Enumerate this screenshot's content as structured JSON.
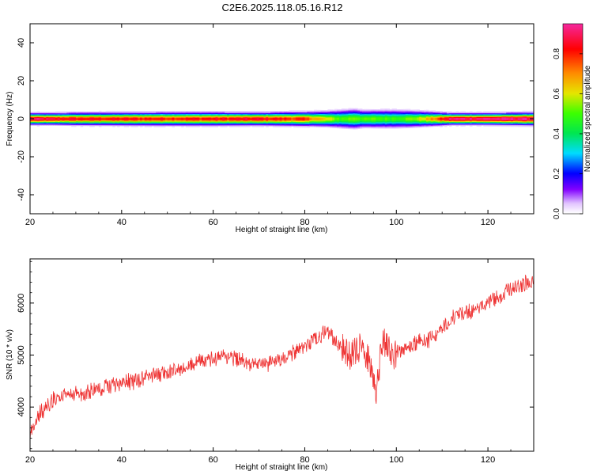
{
  "title": "C2E6.2025.118.05.16.R12",
  "chart_data": [
    {
      "type": "heatmap",
      "xlabel": "Height of straight line (km)",
      "ylabel": "Frequency (Hz)",
      "xlim": [
        20,
        130
      ],
      "ylim": [
        -50,
        50
      ],
      "xticks": [
        20,
        40,
        60,
        80,
        100,
        120
      ],
      "yticks": [
        -40,
        -20,
        0,
        20,
        40
      ],
      "colorbar": {
        "label": "Normalized spectral amplitude",
        "range": [
          0,
          0.95
        ],
        "ticks": [
          0.0,
          0.2,
          0.4,
          0.6,
          0.8
        ],
        "tick_labels": [
          "0.0",
          "0.2",
          "0.4",
          "0.6",
          "0.8"
        ],
        "colormap": "rainbow"
      },
      "band": {
        "center_hz": 0,
        "height_km": [
          20,
          25,
          30,
          40,
          50,
          60,
          70,
          80,
          85,
          88,
          91,
          93,
          95,
          97,
          100,
          104,
          108,
          112,
          120,
          130
        ],
        "halfwidth_hz": [
          3,
          3,
          3.2,
          3.3,
          3.4,
          3.4,
          3.3,
          3.6,
          4,
          4.6,
          5,
          4.4,
          4.5,
          4.6,
          4.6,
          4.2,
          3.6,
          3,
          3,
          3.3
        ],
        "peak_amplitude": [
          0.92,
          0.86,
          0.84,
          0.83,
          0.82,
          0.83,
          0.85,
          0.78,
          0.6,
          0.5,
          0.55,
          0.5,
          0.52,
          0.5,
          0.5,
          0.55,
          0.7,
          0.93,
          0.95,
          0.95
        ]
      }
    },
    {
      "type": "line",
      "xlabel": "Height of straight line (km)",
      "ylabel": "SNR (10 * v/v)",
      "xlim": [
        20,
        130
      ],
      "ylim": [
        3150,
        6850
      ],
      "xticks": [
        20,
        40,
        60,
        80,
        100,
        120
      ],
      "yticks": [
        4000,
        5000,
        6000
      ],
      "color": "#ee3333",
      "trend": {
        "x": [
          20,
          22,
          25,
          30,
          40,
          50,
          55,
          60,
          65,
          68,
          72,
          76,
          80,
          83,
          85,
          87,
          90,
          92,
          94,
          95.5,
          97,
          99,
          103,
          107,
          109,
          112,
          116,
          120,
          125,
          130
        ],
        "y": [
          3500,
          3850,
          4150,
          4250,
          4450,
          4650,
          4800,
          4950,
          4950,
          4820,
          4820,
          4950,
          5150,
          5350,
          5450,
          5250,
          5000,
          5150,
          4900,
          4250,
          5300,
          5000,
          5200,
          5300,
          5400,
          5700,
          5850,
          6000,
          6250,
          6450
        ]
      },
      "noise_amplitude": 140,
      "series_points": 1100
    }
  ]
}
